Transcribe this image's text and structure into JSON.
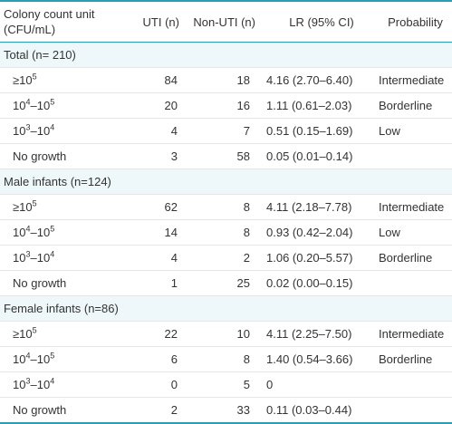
{
  "header": {
    "col_unit_line1": "Colony count unit",
    "col_unit_line2": "(CFU/mL)",
    "col_uti": "UTI (n)",
    "col_nonuti": "Non-UTI (n)",
    "col_lr": "LR (95% CI)",
    "col_prob": "Probability"
  },
  "sections": [
    {
      "label": "Total (n= 210)",
      "rows": [
        {
          "unit_base": "≥10",
          "unit_sup": "5",
          "unit_mid": "",
          "unit_sup2": "",
          "uti": "84",
          "nonuti": "18",
          "lr": "4.16 (2.70–6.40)",
          "prob": "Intermediate"
        },
        {
          "unit_base": "10",
          "unit_sup": "4",
          "unit_mid": "–10",
          "unit_sup2": "5",
          "uti": "20",
          "nonuti": "16",
          "lr": "1.11 (0.61–2.03)",
          "prob": "Borderline"
        },
        {
          "unit_base": "10",
          "unit_sup": "3",
          "unit_mid": "–10",
          "unit_sup2": "4",
          "uti": "4",
          "nonuti": "7",
          "lr": "0.51 (0.15–1.69)",
          "prob": "Low"
        },
        {
          "unit_base": "No growth",
          "unit_sup": "",
          "unit_mid": "",
          "unit_sup2": "",
          "uti": "3",
          "nonuti": "58",
          "lr": "0.05 (0.01–0.14)",
          "prob": ""
        }
      ]
    },
    {
      "label": "Male infants (n=124)",
      "rows": [
        {
          "unit_base": "≥10",
          "unit_sup": "5",
          "unit_mid": "",
          "unit_sup2": "",
          "uti": "62",
          "nonuti": "8",
          "lr": "4.11 (2.18–7.78)",
          "prob": "Intermediate"
        },
        {
          "unit_base": "10",
          "unit_sup": "4",
          "unit_mid": "–10",
          "unit_sup2": "5",
          "uti": "14",
          "nonuti": "8",
          "lr": "0.93 (0.42–2.04)",
          "prob": "Low"
        },
        {
          "unit_base": "10",
          "unit_sup": "3",
          "unit_mid": "–10",
          "unit_sup2": "4",
          "uti": "4",
          "nonuti": "2",
          "lr": "1.06 (0.20–5.57)",
          "prob": "Borderline"
        },
        {
          "unit_base": "No growth",
          "unit_sup": "",
          "unit_mid": "",
          "unit_sup2": "",
          "uti": "1",
          "nonuti": "25",
          "lr": "0.02 (0.00–0.15)",
          "prob": ""
        }
      ]
    },
    {
      "label": "Female infants (n=86)",
      "rows": [
        {
          "unit_base": "≥10",
          "unit_sup": "5",
          "unit_mid": "",
          "unit_sup2": "",
          "uti": "22",
          "nonuti": "10",
          "lr": "4.11 (2.25–7.50)",
          "prob": "Intermediate"
        },
        {
          "unit_base": "10",
          "unit_sup": "4",
          "unit_mid": "–10",
          "unit_sup2": "5",
          "uti": "6",
          "nonuti": "8",
          "lr": "1.40 (0.54–3.66)",
          "prob": "Borderline"
        },
        {
          "unit_base": "10",
          "unit_sup": "3",
          "unit_mid": "–10",
          "unit_sup2": "4",
          "uti": "0",
          "nonuti": "5",
          "lr": "0",
          "prob": ""
        },
        {
          "unit_base": "No growth",
          "unit_sup": "",
          "unit_mid": "",
          "unit_sup2": "",
          "uti": "2",
          "nonuti": "33",
          "lr": "0.11 (0.03–0.44)",
          "prob": ""
        }
      ]
    }
  ]
}
